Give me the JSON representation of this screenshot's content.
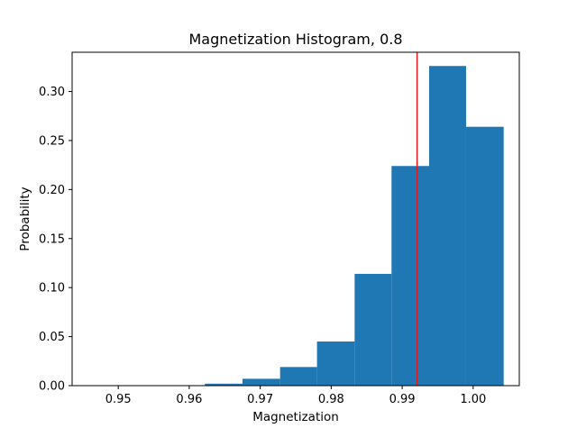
{
  "chart_data": {
    "type": "bar",
    "title": "Magnetization Histogram, 0.8",
    "xlabel": "Magnetization",
    "ylabel": "Probability",
    "xlim": [
      0.9435,
      1.0065
    ],
    "ylim": [
      0,
      0.34
    ],
    "x_ticks": [
      0.95,
      0.96,
      0.97,
      0.98,
      0.99,
      1.0
    ],
    "x_tick_labels": [
      "0.95",
      "0.96",
      "0.97",
      "0.98",
      "0.99",
      "1.00"
    ],
    "y_ticks": [
      0.0,
      0.05,
      0.1,
      0.15,
      0.2,
      0.25,
      0.3
    ],
    "y_tick_labels": [
      "0.00",
      "0.05",
      "0.10",
      "0.15",
      "0.20",
      "0.25",
      "0.30"
    ],
    "bins": [
      {
        "x0": 0.9465,
        "x1": 0.9517,
        "value": 0.0
      },
      {
        "x0": 0.9517,
        "x1": 0.957,
        "value": 0.0
      },
      {
        "x0": 0.957,
        "x1": 0.9622,
        "value": 0.0003
      },
      {
        "x0": 0.9622,
        "x1": 0.9675,
        "value": 0.002
      },
      {
        "x0": 0.9675,
        "x1": 0.9728,
        "value": 0.007
      },
      {
        "x0": 0.9728,
        "x1": 0.978,
        "value": 0.019
      },
      {
        "x0": 0.978,
        "x1": 0.9833,
        "value": 0.045
      },
      {
        "x0": 0.9833,
        "x1": 0.9885,
        "value": 0.114
      },
      {
        "x0": 0.9885,
        "x1": 0.9938,
        "value": 0.224
      },
      {
        "x0": 0.9938,
        "x1": 0.999,
        "value": 0.326
      },
      {
        "x0": 0.999,
        "x1": 1.0043,
        "value": 0.264
      }
    ],
    "bar_color": "#1f77b4",
    "vline": {
      "x": 0.9921,
      "color": "#e41a1c"
    },
    "grid": false,
    "legend": "none"
  }
}
